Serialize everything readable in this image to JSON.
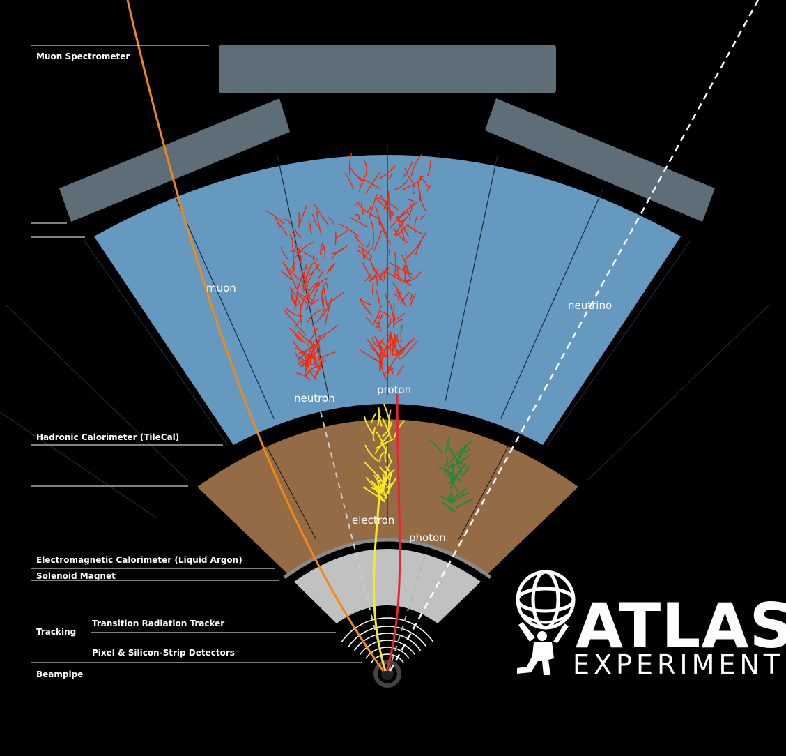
{
  "layer_labels": {
    "muon_spectrometer": "Muon Spectrometer",
    "hadronic_calorimeter": "Hadronic Calorimeter (TileCal)",
    "em_calorimeter": "Electromagnetic Calorimeter (Liquid Argon)",
    "solenoid": "Solenoid Magnet",
    "tracking": "Tracking",
    "trt": "Transition Radiation Tracker",
    "pixel": "Pixel & Silicon-Strip Detectors",
    "beampipe": "Beampipe"
  },
  "particles": {
    "muon": "muon",
    "neutrino": "neutrino",
    "neutron": "neutron",
    "proton": "proton",
    "electron": "electron",
    "photon": "photon"
  },
  "logo": {
    "big": "ATLAS",
    "small": "EXPERIMENT"
  },
  "colors": {
    "background": "#000000",
    "muon_chamber": "#5e6e78",
    "hadronic": "#6699c0",
    "em": "#946b45",
    "tracker": "#c0c2c1",
    "muon_track": "#f08a12",
    "proton_track": "#e8262e",
    "electron_track": "#f5ec1c",
    "photon_shower": "#1a8c3a",
    "hadron_shower": "#ff2200",
    "neutral_dashed": "#ffffff"
  }
}
